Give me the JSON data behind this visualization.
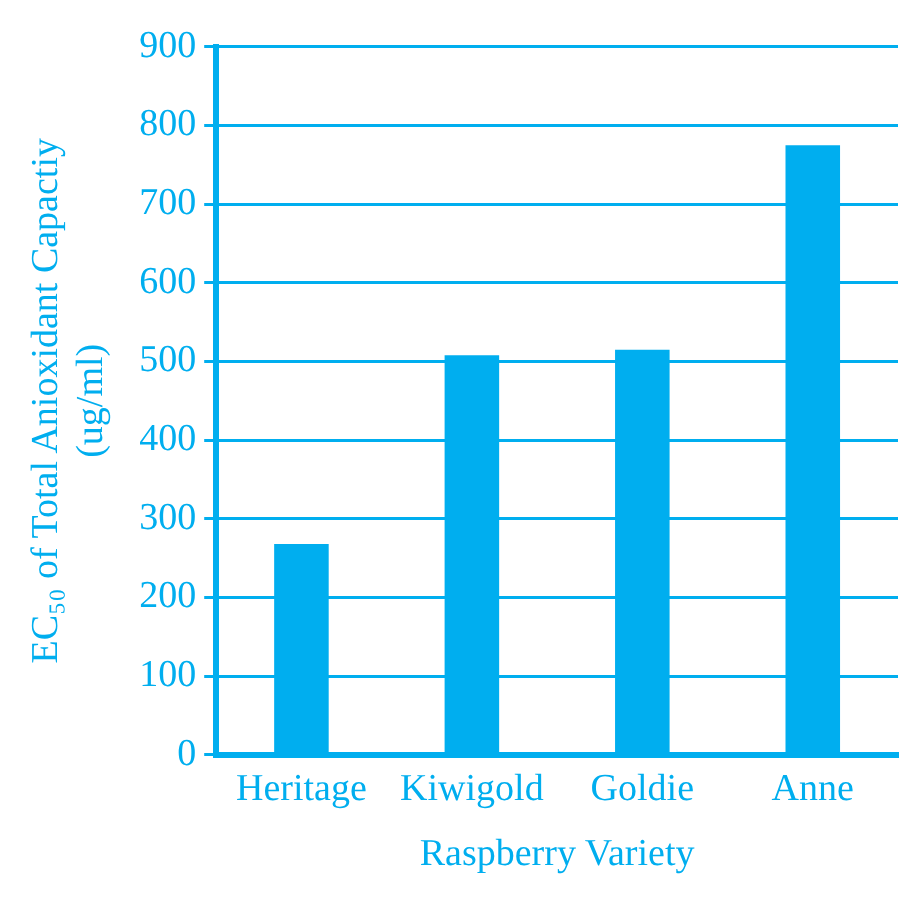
{
  "chart_data": {
    "type": "bar",
    "xlabel": "Raspberry Variety",
    "ylabel": "EC₅₀ of Total Anioxidant Capactiy\n(ug/ml)",
    "categories": [
      "Heritage",
      "Kiwigold",
      "Goldie",
      "Anne"
    ],
    "values": [
      268,
      508,
      515,
      775
    ],
    "color": "#00aeef",
    "ylim": [
      0,
      900
    ],
    "yticks": [
      0,
      100,
      200,
      300,
      400,
      500,
      600,
      700,
      800,
      900
    ],
    "grid": "y"
  }
}
